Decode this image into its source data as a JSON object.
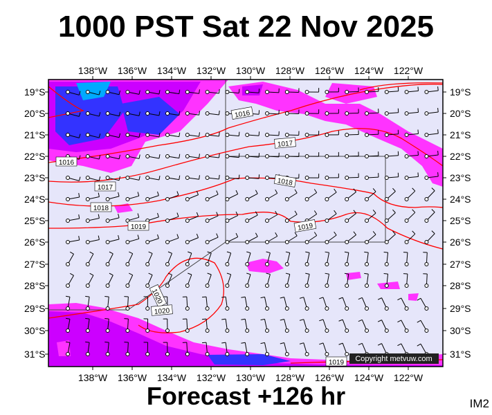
{
  "title": "1000 PST Sat 22 Nov 2025",
  "subtitle": "Forecast +126 hr",
  "image_id": "IM2",
  "copyright": "Copyright metvuw.com",
  "lon_labels": [
    "138°W",
    "136°W",
    "134°W",
    "132°W",
    "130°W",
    "128°W",
    "126°W",
    "124°W",
    "122°W"
  ],
  "lat_labels": [
    "19°S",
    "20°S",
    "21°S",
    "22°S",
    "23°S",
    "24°S",
    "25°S",
    "26°S",
    "27°S",
    "28°S",
    "29°S",
    "30°S",
    "31°S"
  ],
  "isobars": [
    "1016",
    "1016",
    "1017",
    "1017",
    "1018",
    "1018",
    "1019",
    "1019",
    "1020",
    "1020",
    "1019"
  ],
  "colors": {
    "background": "#e6e6fa",
    "isobar": "#ff0000",
    "precip_light": "#ff33ff",
    "precip_heavy": "#cc00ff",
    "precip_core": "#3333ff",
    "wind_barb": "#000000"
  }
}
